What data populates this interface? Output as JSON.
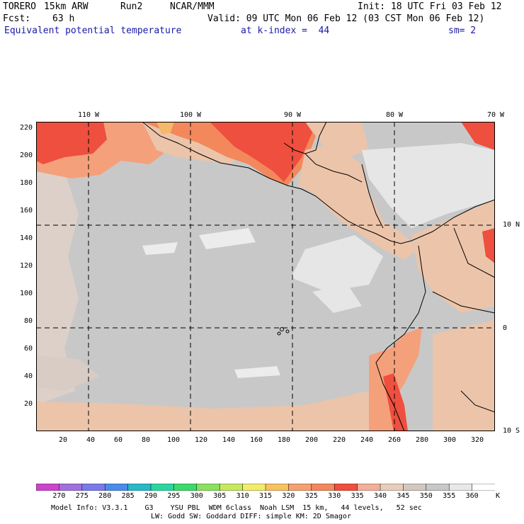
{
  "header": {
    "model": "TORERO",
    "resolution": "15km ARW",
    "run": "Run2",
    "org": "NCAR/MMM",
    "init": "Init: 18 UTC Fri 03 Feb 12",
    "fcst_label": "Fcst:",
    "fcst_value": "63 h",
    "valid": "Valid: 09 UTC Mon 06 Feb 12 (03 CST Mon 06 Feb 12)",
    "field": "Equivalent potential temperature",
    "level": "at k-index =  44",
    "smooth": "sm= 2"
  },
  "map": {
    "lon_labels": [
      "110 W",
      "100 W",
      "90 W",
      "80 W",
      "70 W"
    ],
    "lat_labels": [
      "10 N",
      "0",
      "10 S"
    ],
    "y_ticks": [
      "220",
      "200",
      "180",
      "160",
      "140",
      "120",
      "100",
      "80",
      "60",
      "40",
      "20"
    ],
    "x_ticks": [
      "20",
      "40",
      "60",
      "80",
      "100",
      "120",
      "140",
      "160",
      "180",
      "200",
      "220",
      "240",
      "260",
      "280",
      "300",
      "320"
    ],
    "colors": {
      "ocean_gray": "#c8c8c8",
      "light_gray": "#e6e6e6",
      "tan": "#ebc4aa",
      "salmon": "#f4a07a",
      "orange": "#f3885c",
      "red": "#ee4f3e",
      "coastline": "#000000",
      "gridline": "#000000"
    }
  },
  "colorbar": {
    "labels": [
      "270",
      "275",
      "280",
      "285",
      "290",
      "295",
      "300",
      "305",
      "310",
      "315",
      "320",
      "325",
      "330",
      "335",
      "340",
      "345",
      "350",
      "355",
      "360",
      "K"
    ],
    "colors": [
      "#cc44cc",
      "#a070dc",
      "#7a7ae8",
      "#4a8ce8",
      "#28b8c8",
      "#2ad6a0",
      "#3cd96c",
      "#8ce060",
      "#c8e860",
      "#f2ec6a",
      "#f8c260",
      "#f4a070",
      "#f3885c",
      "#ee4f3e",
      "#f2b09a",
      "#e8cdbc",
      "#d2c8c0",
      "#c8c8c8",
      "#e8e8e8",
      "#ffffff"
    ]
  },
  "footer": {
    "line1": "Model Info: V3.3.1    G3    YSU PBL  WDM 6class  Noah LSM  15 km,   44 levels,   52 sec",
    "line2": "LW: Godd SW: Goddard DIFF: simple KM: 2D Smagor"
  }
}
